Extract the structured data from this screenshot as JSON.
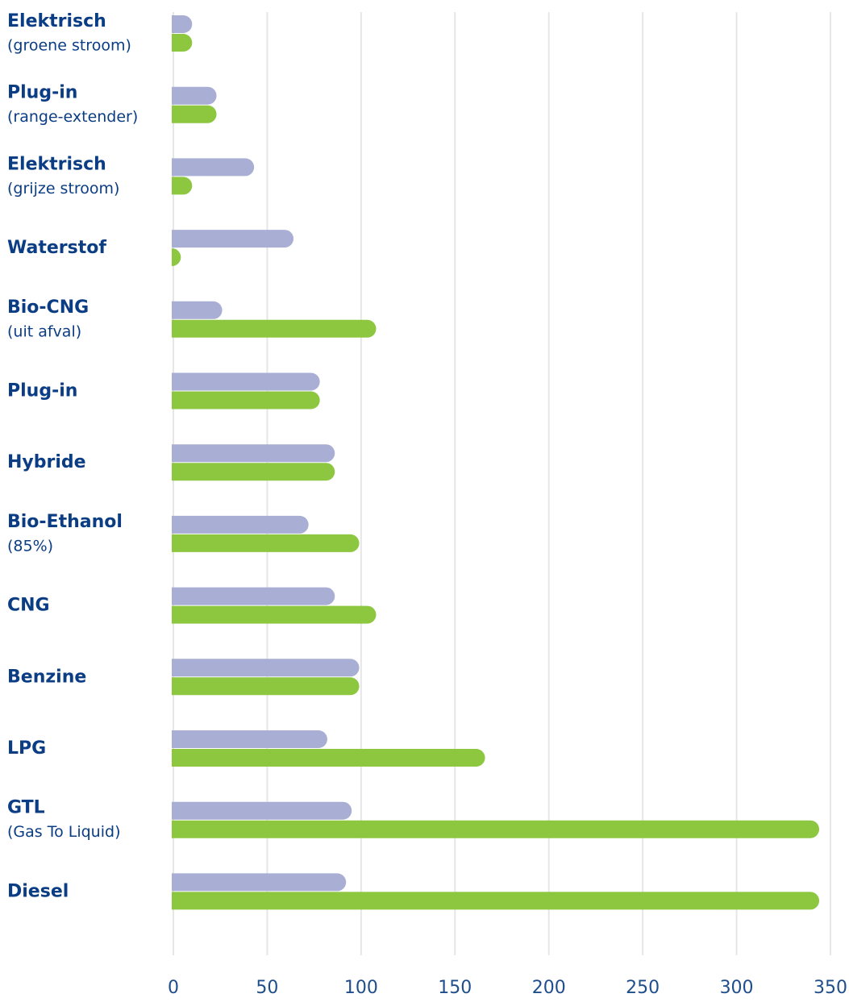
{
  "chart_data": {
    "type": "bar",
    "orientation": "horizontal",
    "categories": [
      "Elektrisch",
      "Plug-in",
      "Elektrisch",
      "Waterstof",
      "Bio-CNG",
      "Plug-in",
      "Hybride",
      "Bio-Ethanol",
      "CNG",
      "Benzine",
      "LPG",
      "GTL",
      "Diesel"
    ],
    "category_notes": [
      "(groene stroom)",
      "(range-extender)",
      "(grijze stroom)",
      null,
      "(uit afval)",
      null,
      null,
      "(85%)",
      null,
      null,
      null,
      "(Gas To Liquid)",
      null
    ],
    "series": [
      {
        "color": "#a8aed4",
        "values": [
          10,
          23,
          43,
          64,
          26,
          78,
          86,
          72,
          86,
          99,
          82,
          95,
          92
        ]
      },
      {
        "color": "#8dc63f",
        "values": [
          10,
          23,
          10,
          4,
          108,
          78,
          86,
          99,
          108,
          99,
          166,
          344,
          344
        ]
      }
    ],
    "xlim": [
      0,
      350
    ],
    "xticks": [
      0,
      50,
      100,
      150,
      200,
      250,
      300,
      350
    ],
    "grid": true
  }
}
